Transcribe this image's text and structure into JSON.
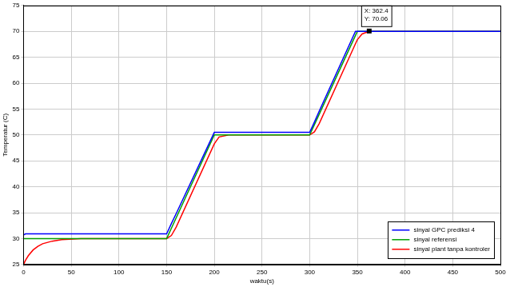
{
  "chart_data": {
    "type": "line",
    "x_label": "waktu(s)",
    "y_label": "Temperatur (C)",
    "x": [
      0,
      2,
      5,
      10,
      15,
      20,
      30,
      40,
      60,
      150,
      155,
      160,
      200,
      205,
      215,
      300,
      305,
      310,
      348,
      350,
      355,
      362,
      500
    ],
    "series": [
      {
        "name": "sinyal GPC prediksi 4",
        "color": "#0000ff",
        "values": [
          30.7,
          30.9,
          30.9,
          30.9,
          30.9,
          30.9,
          30.9,
          30.9,
          30.9,
          30.9,
          32.9,
          34.8,
          50.5,
          50.5,
          50.5,
          50.5,
          52.5,
          54.6,
          70,
          70,
          70,
          70,
          70
        ]
      },
      {
        "name": "sinyal referensi",
        "color": "#00a000",
        "values": [
          30,
          30,
          30,
          30,
          30,
          30,
          30,
          30,
          30,
          30,
          32,
          34,
          50,
          50,
          50,
          50,
          52,
          54,
          69.2,
          70,
          70,
          70,
          70
        ]
      },
      {
        "name": "sinyal plant tanpa kontroler",
        "color": "#ff0000",
        "values": [
          25,
          25.8,
          26.7,
          27.8,
          28.5,
          29,
          29.5,
          29.8,
          30,
          30,
          30.6,
          32.2,
          48.3,
          49.6,
          50,
          50,
          50.6,
          52.2,
          67.6,
          68.4,
          69.5,
          70,
          70
        ]
      }
    ],
    "xlim": [
      0,
      500
    ],
    "xticks": [
      0,
      50,
      100,
      150,
      200,
      250,
      300,
      350,
      400,
      450,
      500
    ],
    "ylim": [
      25,
      75
    ],
    "yticks": [
      25,
      30,
      35,
      40,
      45,
      50,
      55,
      60,
      65,
      70,
      75
    ],
    "grid": true,
    "legend": "lower right",
    "annotations": [
      {
        "x": 362.4,
        "y": 70.06,
        "text": [
          "X: 362.4",
          "Y: 70.06"
        ]
      }
    ]
  }
}
